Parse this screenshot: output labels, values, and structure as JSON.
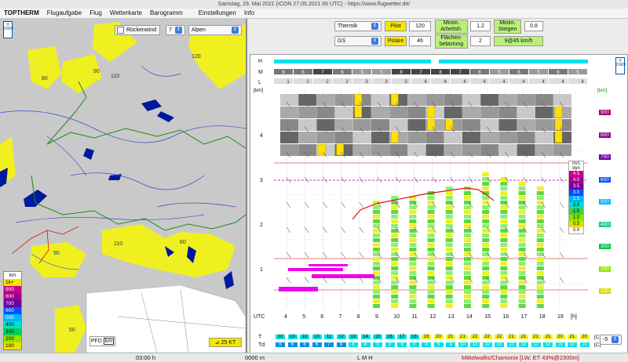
{
  "window": {
    "title": "Samstag, 29. Mai 2021 (ICON 27.05.2021 00 UTC) - https://www.flugwetter.de/"
  },
  "menu": [
    "TOPTHERM",
    "Flugaufgabe",
    "Flug",
    "Wetterkarte",
    "Barogramm",
    "Einstellungen",
    "Info"
  ],
  "map": {
    "rueckenwind_label": "Rückenwind",
    "wind_value": "7",
    "region": "Alpen",
    "alt_labels": [
      "80",
      "90",
      "110",
      "120",
      "110",
      "60",
      "90",
      "50"
    ],
    "pfd_label": "PFD",
    "pfd_unit": "km",
    "wind_scale": "25 KT",
    "legend_title": "km",
    "legend": [
      {
        "label": "1k+",
        "color": "#f5e600"
      },
      {
        "label": "900",
        "color": "#c8008c"
      },
      {
        "label": "800",
        "color": "#a0008c"
      },
      {
        "label": "700",
        "color": "#6a00a0"
      },
      {
        "label": "600",
        "color": "#0050ff"
      },
      {
        "label": "500",
        "color": "#00b4ff"
      },
      {
        "label": "400",
        "color": "#00e0c8"
      },
      {
        "label": "300",
        "color": "#00d050"
      },
      {
        "label": "200",
        "color": "#8ce600"
      },
      {
        "label": "100",
        "color": "#f0e000"
      }
    ]
  },
  "controls": {
    "mode": "Thermik",
    "pilot_label": "Pilot",
    "pilot_value": "120",
    "min_arbeit_label_1": "Minim.",
    "min_arbeit_label_2": "Arbeitsh.",
    "min_arbeit_value": "1.2",
    "min_steigen_label_1": "Minim.",
    "min_steigen_label_2": "Steigen",
    "min_steigen_value": "0.8",
    "glider": "GS",
    "polare_label": "Polare",
    "polare_value": "46",
    "flaechen_label_1": "Flächen-",
    "flaechen_label_2": "belastung",
    "flaechen_value": "2",
    "result": "9@45 km/h"
  },
  "chart": {
    "row_labels": [
      "H",
      "M",
      "L"
    ],
    "y_unit_left": "[km]",
    "y_unit_right": "[km]",
    "y_ticks": [
      "1",
      "2",
      "3",
      "4"
    ],
    "right_scale": [
      "900",
      "800",
      "700",
      "600",
      "500",
      "400",
      "300",
      "200",
      "100"
    ],
    "utc_label": "UTC",
    "hours": [
      "4",
      "5",
      "6",
      "7",
      "8",
      "9",
      "10",
      "11",
      "12",
      "13",
      "14",
      "15",
      "16",
      "17",
      "18",
      "19"
    ],
    "hour_unit": "[h]",
    "medium_cover": [
      "6",
      "6",
      "7",
      "6",
      "5",
      "5",
      "8",
      "7",
      "8",
      "7",
      "6",
      "5",
      "6",
      "5",
      "6",
      "5"
    ],
    "low_cover": [
      "1",
      "2",
      "2",
      "2",
      "3",
      "3",
      "3",
      "4",
      "4",
      "4",
      "4",
      "4",
      "4",
      "4",
      "4",
      "4"
    ],
    "climb_title": "m/s",
    "climb_sub": "dyn",
    "climb_scale": [
      "4.5",
      "4.0",
      "3.5",
      "3.0",
      "2.5",
      "2.0",
      "1.5",
      "1.0",
      "0.5",
      "0.0"
    ],
    "T_label": "T",
    "Td_label": "Td",
    "T_values": [
      "10",
      "10",
      "10",
      "10",
      "11",
      "12",
      "13",
      "14",
      "15",
      "16",
      "17",
      "18",
      "19",
      "20",
      "21",
      "21",
      "22",
      "22",
      "22",
      "21",
      "21",
      "21",
      "21",
      "20",
      "21",
      "20"
    ],
    "Td_values": [
      "6",
      "6",
      "6",
      "6",
      "7",
      "8",
      "8",
      "8",
      "9",
      "9",
      "9",
      "9",
      "9",
      "9",
      "9",
      "10",
      "10",
      "10",
      "10",
      "10",
      "10",
      "10",
      "10",
      "10",
      "10",
      "10"
    ],
    "temp_unit": "[C]",
    "spinner_value": "-5"
  },
  "status": {
    "time": "03:00 h",
    "alt": "0000 m",
    "lmh": "L M H",
    "location": "Mittelwallis/Chamonix [LW, ET  43%@2300m]"
  }
}
